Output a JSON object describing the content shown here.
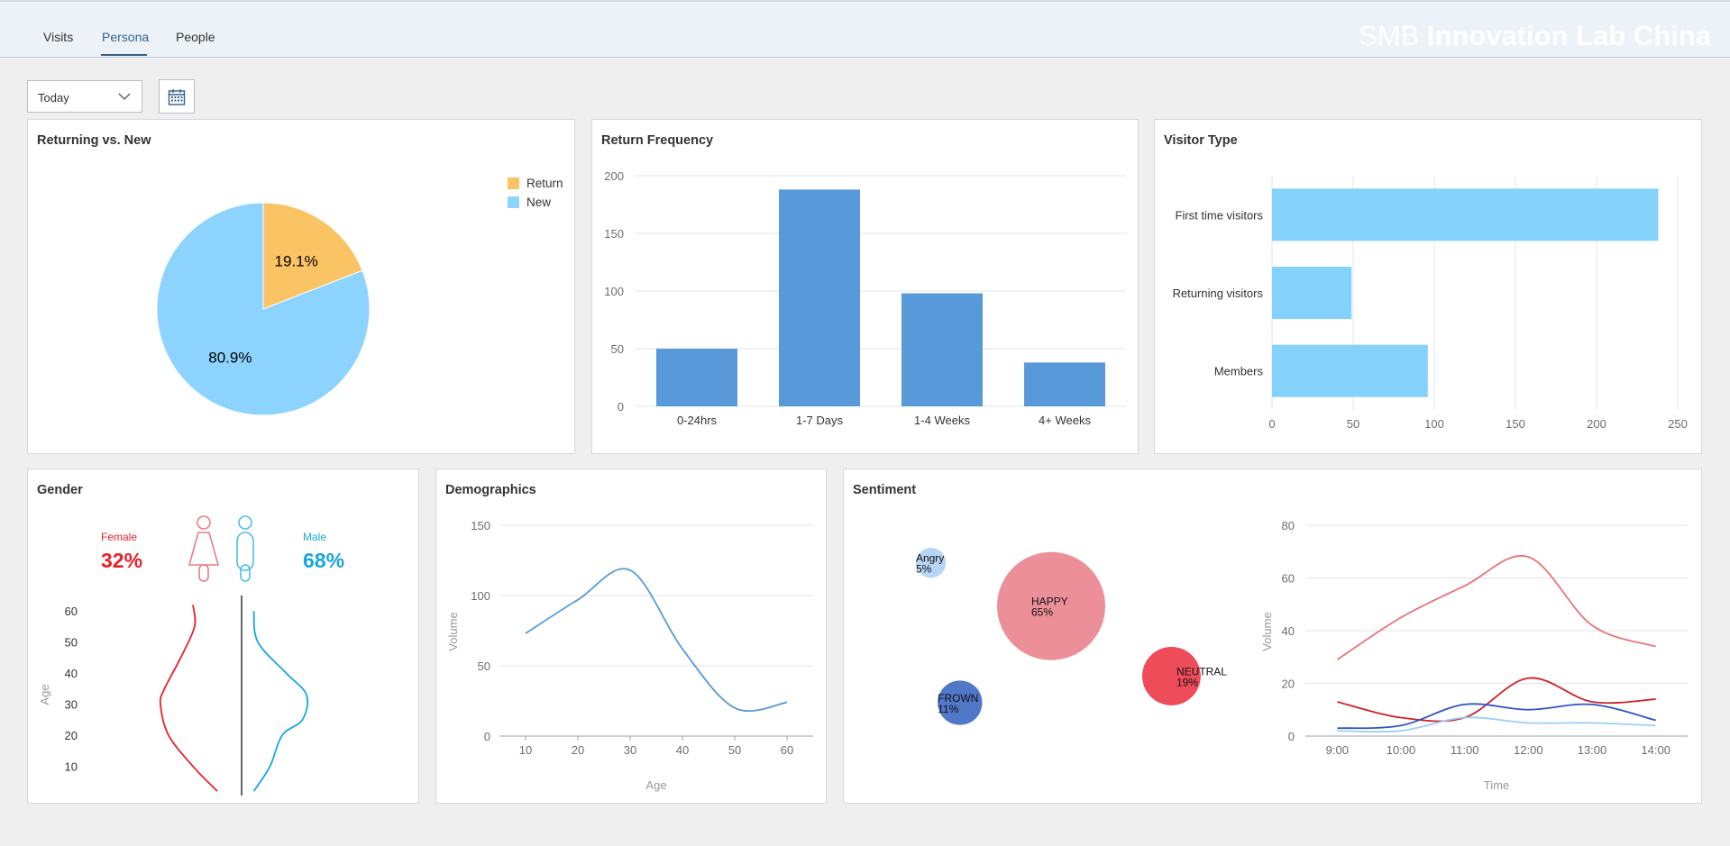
{
  "nav": {
    "tabs": [
      {
        "label": "Visits"
      },
      {
        "label": "Persona"
      },
      {
        "label": "People"
      }
    ],
    "active_tab": "Persona",
    "brand_light": "SMB",
    "brand_bold": "Innovation Lab China"
  },
  "filters": {
    "period_selected": "Today",
    "chevron_icon": "chevron-down-icon",
    "calendar_icon": "calendar-icon"
  },
  "colors": {
    "accent": "#346187",
    "return": "#fac364",
    "new": "#8cd3ff",
    "bar": "#5899da",
    "visitor_bar": "#84d1fb",
    "female": "#e8202a",
    "male": "#19a6dc"
  },
  "cards": {
    "returning_vs_new": {
      "title": "Returning vs. New"
    },
    "return_frequency": {
      "title": "Return Frequency"
    },
    "visitor_type": {
      "title": "Visitor Type"
    },
    "gender": {
      "title": "Gender"
    },
    "demographics": {
      "title": "Demographics"
    },
    "sentiment": {
      "title": "Sentiment"
    }
  },
  "gender": {
    "female_label": "Female",
    "female_pct": "32%",
    "male_label": "Male",
    "male_pct": "68%",
    "female_icon": "female-person-icon",
    "male_icon": "male-person-icon"
  },
  "chart_data": [
    {
      "id": "returning_vs_new",
      "type": "pie",
      "title": "Returning vs. New",
      "legend_position": "top-right",
      "slices": [
        {
          "label": "Return",
          "value": 19.1,
          "display": "19.1%",
          "color": "#fac364"
        },
        {
          "label": "New",
          "value": 80.9,
          "display": "80.9%",
          "color": "#8cd3ff"
        }
      ]
    },
    {
      "id": "return_frequency",
      "type": "bar",
      "title": "Return Frequency",
      "categories": [
        "0-24hrs",
        "1-7 Days",
        "1-4 Weeks",
        "4+ Weeks"
      ],
      "values": [
        50,
        188,
        98,
        38
      ],
      "ylim": [
        0,
        200
      ],
      "yticks": [
        0,
        50,
        100,
        150,
        200
      ],
      "grid": true
    },
    {
      "id": "visitor_type",
      "type": "bar",
      "orientation": "horizontal",
      "title": "Visitor Type",
      "categories": [
        "First time visitors",
        "Returning visitors",
        "Members"
      ],
      "values": [
        238,
        49,
        96
      ],
      "xlim": [
        0,
        250
      ],
      "xticks": [
        0,
        50,
        100,
        150,
        200,
        250
      ],
      "grid": true
    },
    {
      "id": "gender_age",
      "type": "line",
      "title": "Gender",
      "ylabel": "Age",
      "yticks": [
        10,
        20,
        30,
        40,
        50,
        60
      ],
      "ylim": [
        0,
        65
      ],
      "series": [
        {
          "name": "Female",
          "color": "#e8202a",
          "points": [
            [
              0.6,
              62
            ],
            [
              0.58,
              55
            ],
            [
              0.75,
              45
            ],
            [
              0.95,
              35
            ],
            [
              1.0,
              30
            ],
            [
              0.9,
              20
            ],
            [
              0.6,
              10
            ],
            [
              0.3,
              2
            ]
          ]
        },
        {
          "name": "Male",
          "color": "#19a6dc",
          "points": [
            [
              0.15,
              60
            ],
            [
              0.2,
              50
            ],
            [
              0.55,
              40
            ],
            [
              0.8,
              33
            ],
            [
              0.75,
              25
            ],
            [
              0.5,
              20
            ],
            [
              0.35,
              10
            ],
            [
              0.15,
              2
            ]
          ]
        }
      ]
    },
    {
      "id": "demographics",
      "type": "line",
      "title": "Demographics",
      "xlabel": "Age",
      "ylabel": "Volume",
      "xticks": [
        10,
        20,
        30,
        40,
        50,
        60
      ],
      "yticks": [
        0,
        50,
        100,
        150
      ],
      "xlim": [
        5,
        65
      ],
      "ylim": [
        0,
        150
      ],
      "grid": true,
      "series": [
        {
          "points": [
            [
              10,
              73
            ],
            [
              20,
              97
            ],
            [
              30,
              118
            ],
            [
              40,
              62
            ],
            [
              50,
              20
            ],
            [
              60,
              24
            ]
          ]
        }
      ]
    },
    {
      "id": "sentiment_bubbles",
      "type": "scatter",
      "title": "Sentiment",
      "bubbles": [
        {
          "label": "Angry",
          "pct": "5%",
          "value": 5,
          "color": "#b7d6f6",
          "cx": 0.21,
          "cy": 0.28
        },
        {
          "label": "HAPPY",
          "pct": "65%",
          "value": 65,
          "color": "#ec8f98",
          "cx": 0.5,
          "cy": 0.41
        },
        {
          "label": "NEUTRAL",
          "pct": "19%",
          "value": 19,
          "color": "#ef4c5a",
          "cx": 0.79,
          "cy": 0.62
        },
        {
          "label": "FROWN",
          "pct": "11%",
          "value": 11,
          "color": "#5177c8",
          "cx": 0.28,
          "cy": 0.7
        }
      ]
    },
    {
      "id": "sentiment_time",
      "type": "line",
      "xlabel": "Time",
      "ylabel": "Volume",
      "categories": [
        "9:00",
        "10:00",
        "11:00",
        "12:00",
        "13:00",
        "14:00"
      ],
      "yticks": [
        0,
        20,
        40,
        60,
        80
      ],
      "ylim": [
        0,
        80
      ],
      "grid": true,
      "series": [
        {
          "color": "#e7737a",
          "values": [
            29,
            45,
            57,
            68,
            42,
            34
          ]
        },
        {
          "color": "#d01f2a",
          "values": [
            13,
            7,
            7,
            22,
            13,
            14
          ]
        },
        {
          "color": "#2f55c3",
          "values": [
            3,
            4,
            12,
            10,
            12,
            6
          ]
        },
        {
          "color": "#9ccff4",
          "values": [
            2,
            2,
            7,
            5,
            5,
            4
          ]
        }
      ]
    }
  ]
}
